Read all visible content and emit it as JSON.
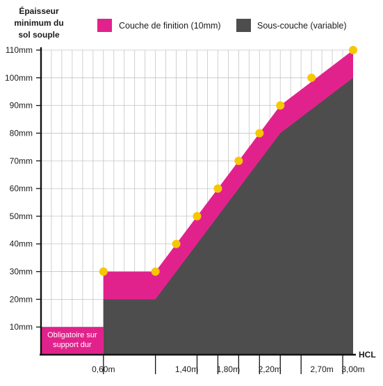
{
  "chart_data": {
    "type": "area",
    "ylabel": [
      "Épaisseur",
      "minimum du",
      "sol souple"
    ],
    "xlabel": "HCL",
    "legend": [
      {
        "label": "Couche de finition (10mm)",
        "color": "#e2228c"
      },
      {
        "label": "Sous-couche (variable)",
        "color": "#4d4d4d"
      }
    ],
    "legend_position": "top",
    "grid": true,
    "xlim": [
      0,
      3.0
    ],
    "ylim": [
      0,
      110
    ],
    "y_ticks": [
      10,
      20,
      30,
      40,
      50,
      60,
      70,
      80,
      90,
      100,
      110
    ],
    "y_tick_labels": [
      "10mm",
      "20mm",
      "30mm",
      "40mm",
      "50mm",
      "60mm",
      "70mm",
      "80mm",
      "90mm",
      "100mm",
      "110mm"
    ],
    "x_ticks": [
      0.6,
      1.4,
      1.8,
      2.2,
      2.7,
      3.0
    ],
    "x_tick_labels": [
      "0,60m",
      "1,40m",
      "1,80m",
      "2,20m",
      "2,70m",
      "3,00m"
    ],
    "x_major_marks": [
      0.6,
      1.1,
      1.5,
      1.7,
      1.9,
      2.1,
      2.3,
      2.5,
      2.9
    ],
    "series": [
      {
        "name": "Sous-couche (variable)",
        "x": [
          0.6,
          1.1,
          1.3,
          2.3,
          3.0
        ],
        "values": [
          20,
          20,
          30,
          80,
          100
        ]
      },
      {
        "name": "Couche de finition (10mm)",
        "x": [
          0.6,
          1.1,
          1.3,
          2.3,
          3.0
        ],
        "values": [
          30,
          30,
          40,
          90,
          110
        ]
      }
    ],
    "points": {
      "x": [
        0.6,
        1.1,
        1.3,
        1.5,
        1.7,
        1.9,
        2.1,
        2.3,
        2.6,
        3.0
      ],
      "values": [
        30,
        30,
        40,
        50,
        60,
        70,
        80,
        90,
        100,
        110
      ],
      "color": "#f5c800"
    },
    "annotation": {
      "lines": [
        "Obligatoire sur",
        "support dur"
      ],
      "x_range": [
        0,
        0.6
      ],
      "y_range": [
        0,
        10
      ],
      "color": "#e2228c"
    }
  }
}
